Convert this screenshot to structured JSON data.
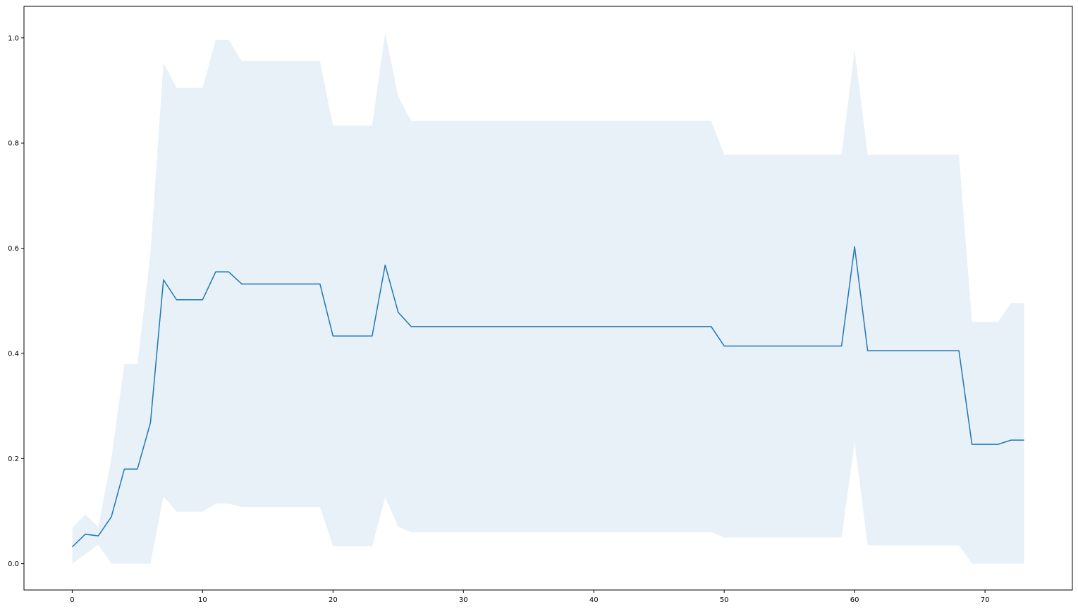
{
  "chart_data": {
    "type": "area",
    "title": "",
    "xlabel": "",
    "ylabel": "",
    "xlim": [
      -3.7,
      76.7
    ],
    "ylim": [
      -0.05,
      1.06
    ],
    "grid": false,
    "legend": "none",
    "x_ticks": [
      0,
      10,
      20,
      30,
      40,
      50,
      60,
      70
    ],
    "y_ticks": [
      0.0,
      0.2,
      0.4,
      0.6,
      0.8,
      1.0
    ],
    "x_tick_labels": [
      "0",
      "10",
      "20",
      "30",
      "40",
      "50",
      "60",
      "70"
    ],
    "y_tick_labels": [
      "0.0",
      "0.2",
      "0.4",
      "0.6",
      "0.8",
      "1.0"
    ],
    "line_color": "#1f77b4",
    "band_color": "#1f77b4",
    "band_opacity": 0.1,
    "x": [
      0,
      1,
      2,
      3,
      4,
      5,
      6,
      7,
      8,
      9,
      10,
      11,
      12,
      13,
      14,
      15,
      16,
      17,
      18,
      19,
      20,
      21,
      22,
      23,
      24,
      25,
      26,
      27,
      28,
      29,
      30,
      31,
      32,
      33,
      34,
      35,
      36,
      37,
      38,
      39,
      40,
      41,
      42,
      43,
      44,
      45,
      46,
      47,
      48,
      49,
      50,
      51,
      52,
      53,
      54,
      55,
      56,
      57,
      58,
      59,
      60,
      61,
      62,
      63,
      64,
      65,
      66,
      67,
      68,
      69,
      70,
      71,
      72,
      73
    ],
    "series": [
      {
        "values": [
          0.032,
          0.056,
          0.053,
          0.089,
          0.18,
          0.18,
          0.268,
          0.54,
          0.502,
          0.502,
          0.502,
          0.555,
          0.555,
          0.532,
          0.532,
          0.532,
          0.532,
          0.532,
          0.532,
          0.532,
          0.433,
          0.433,
          0.433,
          0.433,
          0.568,
          0.478,
          0.451,
          0.451,
          0.451,
          0.451,
          0.451,
          0.451,
          0.451,
          0.451,
          0.451,
          0.451,
          0.451,
          0.451,
          0.451,
          0.451,
          0.451,
          0.451,
          0.451,
          0.451,
          0.451,
          0.451,
          0.451,
          0.451,
          0.451,
          0.451,
          0.414,
          0.414,
          0.414,
          0.414,
          0.414,
          0.414,
          0.414,
          0.414,
          0.414,
          0.414,
          0.603,
          0.405,
          0.405,
          0.405,
          0.405,
          0.405,
          0.405,
          0.405,
          0.405,
          0.227,
          0.227,
          0.227,
          0.235,
          0.235
        ],
        "upper": [
          0.068,
          0.094,
          0.07,
          0.2,
          0.38,
          0.38,
          0.59,
          0.952,
          0.905,
          0.905,
          0.905,
          0.996,
          0.996,
          0.956,
          0.956,
          0.956,
          0.956,
          0.956,
          0.956,
          0.956,
          0.833,
          0.833,
          0.833,
          0.833,
          1.01,
          0.888,
          0.842,
          0.842,
          0.842,
          0.842,
          0.842,
          0.842,
          0.842,
          0.842,
          0.842,
          0.842,
          0.842,
          0.842,
          0.842,
          0.842,
          0.842,
          0.842,
          0.842,
          0.842,
          0.842,
          0.842,
          0.842,
          0.842,
          0.842,
          0.842,
          0.778,
          0.778,
          0.778,
          0.778,
          0.778,
          0.778,
          0.778,
          0.778,
          0.778,
          0.778,
          0.977,
          0.778,
          0.778,
          0.778,
          0.778,
          0.778,
          0.778,
          0.778,
          0.778,
          0.46,
          0.46,
          0.46,
          0.496,
          0.496
        ],
        "lower": [
          0.0,
          0.018,
          0.036,
          0.0,
          0.0,
          0.0,
          0.0,
          0.128,
          0.099,
          0.099,
          0.099,
          0.114,
          0.114,
          0.108,
          0.108,
          0.108,
          0.108,
          0.108,
          0.108,
          0.108,
          0.033,
          0.033,
          0.033,
          0.033,
          0.126,
          0.07,
          0.06,
          0.06,
          0.06,
          0.06,
          0.06,
          0.06,
          0.06,
          0.06,
          0.06,
          0.06,
          0.06,
          0.06,
          0.06,
          0.06,
          0.06,
          0.06,
          0.06,
          0.06,
          0.06,
          0.06,
          0.06,
          0.06,
          0.06,
          0.06,
          0.05,
          0.05,
          0.05,
          0.05,
          0.05,
          0.05,
          0.05,
          0.05,
          0.05,
          0.05,
          0.23,
          0.035,
          0.035,
          0.035,
          0.035,
          0.035,
          0.035,
          0.035,
          0.035,
          0.0,
          0.0,
          0.0,
          0.0,
          0.0
        ]
      }
    ]
  }
}
